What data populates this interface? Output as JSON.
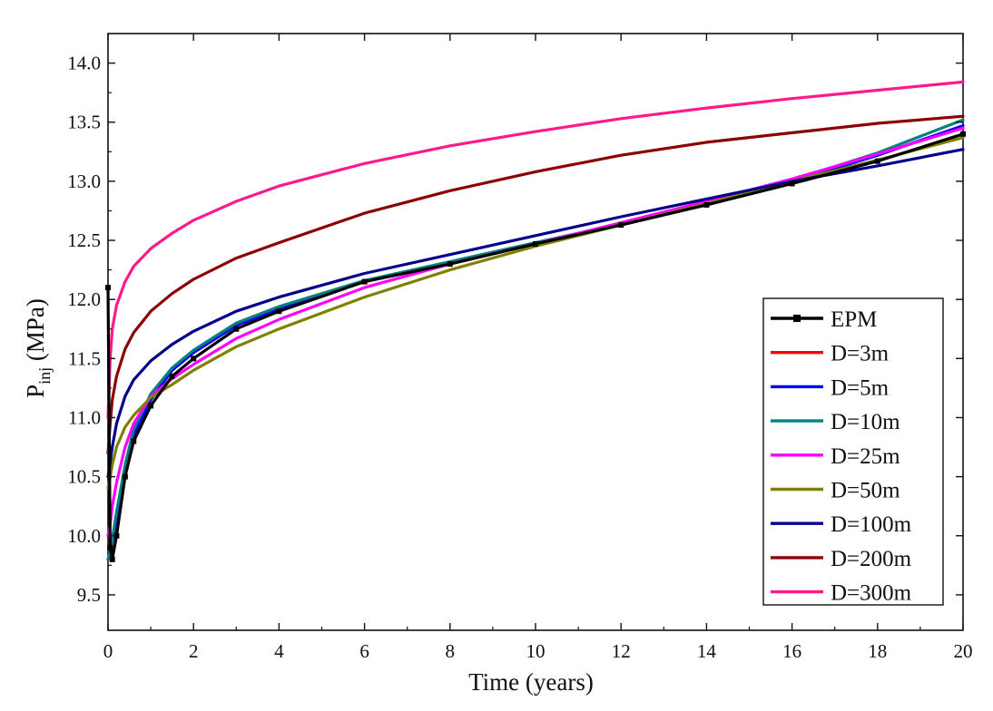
{
  "chart_data": {
    "type": "line",
    "title": "",
    "xlabel": "Time (years)",
    "ylabel": "P",
    "ylabel_subscript": "inj",
    "ylabel_unit": " (MPa)",
    "xlim": [
      0,
      20
    ],
    "ylim": [
      9.2,
      14.25
    ],
    "xticks": [
      0,
      2,
      4,
      6,
      8,
      10,
      12,
      14,
      16,
      18,
      20
    ],
    "yticks": [
      9.5,
      10.0,
      10.5,
      11.0,
      11.5,
      12.0,
      12.5,
      13.0,
      13.5,
      14.0
    ],
    "ytick_labels": [
      "9.5",
      "10.0",
      "10.5",
      "11.0",
      "11.5",
      "12.0",
      "12.5",
      "13.0",
      "13.5",
      "14.0"
    ],
    "grid": false,
    "legend_position": "center-right",
    "series": [
      {
        "name": "EPM",
        "color": "#000000",
        "marker": "square",
        "x": [
          0,
          0.05,
          0.1,
          0.2,
          0.4,
          0.6,
          1,
          1.5,
          2,
          3,
          4,
          6,
          8,
          10,
          12,
          14,
          16,
          18,
          20
        ],
        "y": [
          12.1,
          9.9,
          9.8,
          10.0,
          10.5,
          10.8,
          11.1,
          11.35,
          11.5,
          11.75,
          11.9,
          12.15,
          12.3,
          12.47,
          12.63,
          12.8,
          12.98,
          13.17,
          13.4
        ]
      },
      {
        "name": "D=3m",
        "color": "#ff0000",
        "x": [
          0,
          0.05,
          0.1,
          0.2,
          0.4,
          0.6,
          1,
          1.5,
          2,
          3,
          4,
          6,
          8,
          10,
          12,
          14,
          16,
          18,
          20
        ],
        "y": [
          9.8,
          9.85,
          9.95,
          10.15,
          10.55,
          10.85,
          11.15,
          11.4,
          11.55,
          11.78,
          11.92,
          12.15,
          12.31,
          12.47,
          12.63,
          12.8,
          13.0,
          13.22,
          13.47
        ]
      },
      {
        "name": "D=5m",
        "color": "#0000ff",
        "x": [
          0,
          0.05,
          0.1,
          0.2,
          0.4,
          0.6,
          1,
          1.5,
          2,
          3,
          4,
          6,
          8,
          10,
          12,
          14,
          16,
          18,
          20
        ],
        "y": [
          9.8,
          9.85,
          9.95,
          10.15,
          10.55,
          10.85,
          11.15,
          11.4,
          11.55,
          11.78,
          11.92,
          12.15,
          12.31,
          12.47,
          12.63,
          12.8,
          13.0,
          13.22,
          13.47
        ]
      },
      {
        "name": "D=10m",
        "color": "#008080",
        "x": [
          0,
          0.05,
          0.1,
          0.2,
          0.4,
          0.6,
          1,
          1.5,
          2,
          3,
          4,
          6,
          8,
          10,
          12,
          14,
          16,
          18,
          20
        ],
        "y": [
          9.8,
          9.87,
          9.97,
          10.2,
          10.6,
          10.9,
          11.2,
          11.42,
          11.57,
          11.8,
          11.94,
          12.16,
          12.32,
          12.48,
          12.64,
          12.81,
          13.01,
          13.24,
          13.52
        ]
      },
      {
        "name": "D=25m",
        "color": "#ff00ff",
        "x": [
          0,
          0.05,
          0.1,
          0.2,
          0.4,
          0.6,
          1,
          1.5,
          2,
          3,
          4,
          6,
          8,
          10,
          12,
          14,
          16,
          18,
          20
        ],
        "y": [
          10.0,
          10.1,
          10.25,
          10.45,
          10.75,
          10.95,
          11.18,
          11.33,
          11.45,
          11.67,
          11.83,
          12.1,
          12.3,
          12.47,
          12.65,
          12.83,
          13.02,
          13.23,
          13.45
        ]
      },
      {
        "name": "D=50m",
        "color": "#808000",
        "x": [
          0,
          0.05,
          0.1,
          0.2,
          0.4,
          0.6,
          1,
          1.5,
          2,
          3,
          4,
          6,
          8,
          10,
          12,
          14,
          16,
          18,
          20
        ],
        "y": [
          10.4,
          10.5,
          10.6,
          10.75,
          10.92,
          11.02,
          11.17,
          11.28,
          11.4,
          11.6,
          11.75,
          12.02,
          12.25,
          12.45,
          12.63,
          12.81,
          13.0,
          13.18,
          13.37
        ]
      },
      {
        "name": "D=100m",
        "color": "#00008b",
        "x": [
          0,
          0.05,
          0.1,
          0.2,
          0.4,
          0.6,
          1,
          1.5,
          2,
          3,
          4,
          6,
          8,
          10,
          12,
          14,
          16,
          18,
          20
        ],
        "y": [
          10.5,
          10.62,
          10.75,
          10.95,
          11.18,
          11.32,
          11.48,
          11.62,
          11.73,
          11.9,
          12.02,
          12.22,
          12.38,
          12.54,
          12.7,
          12.85,
          13.0,
          13.13,
          13.27
        ]
      },
      {
        "name": "D=200m",
        "color": "#8b0000",
        "x": [
          0,
          0.05,
          0.1,
          0.2,
          0.4,
          0.6,
          1,
          1.5,
          2,
          3,
          4,
          6,
          8,
          10,
          12,
          14,
          16,
          18,
          20
        ],
        "y": [
          10.7,
          10.95,
          11.15,
          11.35,
          11.58,
          11.72,
          11.9,
          12.05,
          12.17,
          12.35,
          12.48,
          12.73,
          12.92,
          13.08,
          13.22,
          13.33,
          13.41,
          13.49,
          13.55
        ]
      },
      {
        "name": "D=300m",
        "color": "#ff1a8c",
        "x": [
          0,
          0.05,
          0.1,
          0.2,
          0.4,
          0.6,
          1,
          1.5,
          2,
          3,
          4,
          6,
          8,
          10,
          12,
          14,
          16,
          18,
          20
        ],
        "y": [
          11.0,
          11.5,
          11.75,
          11.95,
          12.15,
          12.28,
          12.43,
          12.56,
          12.67,
          12.83,
          12.96,
          13.15,
          13.3,
          13.42,
          13.53,
          13.62,
          13.7,
          13.77,
          13.84
        ]
      }
    ]
  }
}
